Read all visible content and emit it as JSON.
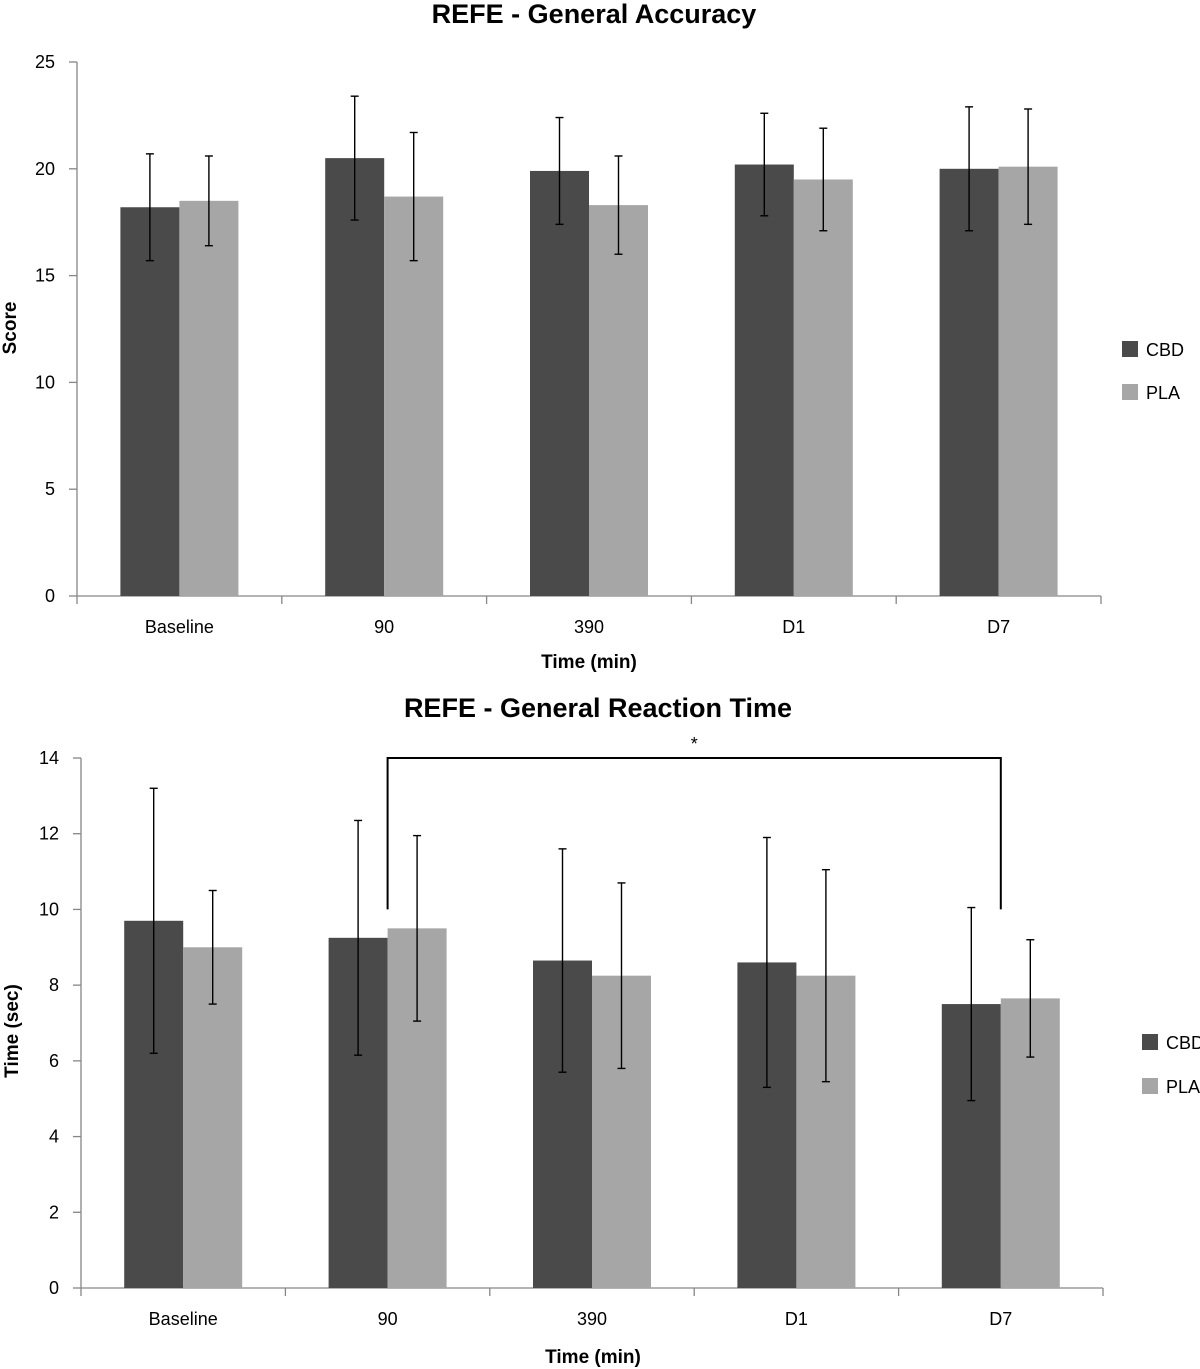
{
  "chart_data": [
    {
      "type": "bar",
      "title": "REFE - General Accuracy",
      "xlabel": "Time (min)",
      "ylabel": "Score",
      "categories": [
        "Baseline",
        "90",
        "390",
        "D1",
        "D7"
      ],
      "ylim": [
        0,
        25
      ],
      "yticks": [
        0,
        5,
        10,
        15,
        20,
        25
      ],
      "grid": false,
      "legend_position": "right",
      "series": [
        {
          "name": "CBD",
          "color": "#4a4a4a",
          "values": [
            18.2,
            20.5,
            19.9,
            20.2,
            20.0
          ],
          "error": [
            2.5,
            2.9,
            2.5,
            2.4,
            2.9
          ]
        },
        {
          "name": "PLA",
          "color": "#a6a6a6",
          "values": [
            18.5,
            18.7,
            18.3,
            19.5,
            20.1
          ],
          "error": [
            2.1,
            3.0,
            2.3,
            2.4,
            2.7
          ]
        }
      ],
      "annotations": []
    },
    {
      "type": "bar",
      "title": "REFE - General Reaction Time",
      "xlabel": "Time (min)",
      "ylabel": "Time (sec)",
      "categories": [
        "Baseline",
        "90",
        "390",
        "D1",
        "D7"
      ],
      "ylim": [
        0,
        14
      ],
      "yticks": [
        0,
        2,
        4,
        6,
        8,
        10,
        12,
        14
      ],
      "grid": false,
      "legend_position": "right",
      "series": [
        {
          "name": "CBD",
          "color": "#4a4a4a",
          "values": [
            9.7,
            9.25,
            8.65,
            8.6,
            7.5
          ],
          "error": [
            3.5,
            3.1,
            2.95,
            3.3,
            2.55
          ]
        },
        {
          "name": "PLA",
          "color": "#a6a6a6",
          "values": [
            9.0,
            9.5,
            8.25,
            8.25,
            7.65
          ],
          "error": [
            1.5,
            2.45,
            2.45,
            2.8,
            1.55
          ]
        }
      ],
      "annotations": [
        {
          "type": "significance-bracket",
          "label": "*",
          "from": {
            "category": "90",
            "value": 10.0
          },
          "to": {
            "category": "D7",
            "value": 10.0
          },
          "bar_value": 14.0
        }
      ]
    }
  ]
}
